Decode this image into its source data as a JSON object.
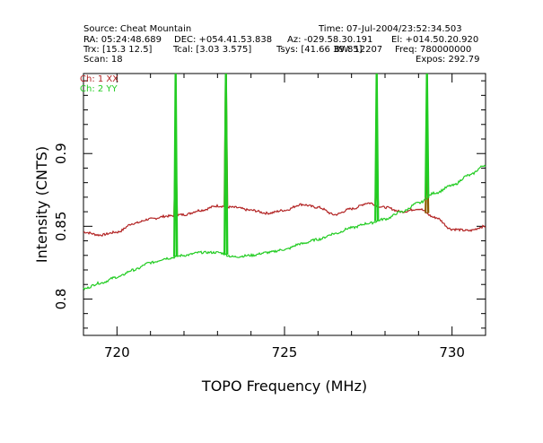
{
  "header": {
    "source": "Source: Cheat Mountain",
    "time": "Time: 07-Jul-2004/23:52:34.503",
    "ra": "RA: 05:24:48.689",
    "dec": "DEC: +054.41.53.838",
    "az": "Az: -029.58.30.191",
    "el": "El: +014.50.20.920",
    "trx": "Trx: [15.3 12.5]",
    "tcal": "Tcal: [3.03 3.575]",
    "tsys": "Tsys: [41.66 39.85]",
    "bw": "BW: 12207",
    "freq": "Freq: 780000000",
    "scan": "Scan: 18",
    "expos": "Expos: 292.79"
  },
  "chart_data": {
    "type": "line",
    "xlabel": "TOPO Frequency (MHz)",
    "ylabel": "Intensity (CNTS)",
    "xlim": [
      719,
      731
    ],
    "ylim": [
      0.775,
      0.955
    ],
    "xticks": [
      720,
      725,
      730
    ],
    "yticks": [
      0.8,
      0.85,
      0.9
    ],
    "ytick_labels": [
      "0.8",
      "0.85",
      "0.9"
    ],
    "grid": false,
    "legend_position": "top-left",
    "series": [
      {
        "name": "Ch: 1 XX",
        "color": "#b22222",
        "x": [
          719.0,
          719.5,
          720.0,
          720.5,
          721.0,
          721.5,
          722.0,
          722.5,
          723.0,
          723.5,
          724.0,
          724.5,
          725.0,
          725.5,
          726.0,
          726.5,
          727.0,
          727.5,
          728.0,
          728.5,
          729.0,
          729.5,
          730.0,
          730.5,
          731.0
        ],
        "values": [
          0.846,
          0.844,
          0.846,
          0.852,
          0.855,
          0.857,
          0.858,
          0.861,
          0.864,
          0.863,
          0.861,
          0.859,
          0.861,
          0.865,
          0.863,
          0.858,
          0.862,
          0.866,
          0.863,
          0.86,
          0.862,
          0.856,
          0.848,
          0.847,
          0.85
        ]
      },
      {
        "name": "Ch: 2 YY",
        "color": "#22cc22",
        "x": [
          719.0,
          719.5,
          720.0,
          720.5,
          721.0,
          721.5,
          722.0,
          722.5,
          723.0,
          723.5,
          724.0,
          724.5,
          725.0,
          725.5,
          726.0,
          726.5,
          727.0,
          727.5,
          728.0,
          728.5,
          729.0,
          729.5,
          730.0,
          730.5,
          731.0
        ],
        "values": [
          0.807,
          0.811,
          0.815,
          0.82,
          0.825,
          0.828,
          0.83,
          0.832,
          0.832,
          0.829,
          0.83,
          0.832,
          0.834,
          0.838,
          0.841,
          0.845,
          0.849,
          0.852,
          0.855,
          0.86,
          0.866,
          0.873,
          0.878,
          0.885,
          0.892
        ]
      }
    ],
    "spikes": [
      {
        "x": 721.75,
        "peak_yy": 0.955,
        "peak_xx": 0.9
      },
      {
        "x": 723.25,
        "peak_yy": 0.955,
        "peak_xx": 0.955
      },
      {
        "x": 727.75,
        "peak_yy": 0.955,
        "peak_xx": 0.885
      },
      {
        "x": 729.25,
        "peak_yy": 0.955,
        "peak_xx": 0.912
      }
    ]
  }
}
